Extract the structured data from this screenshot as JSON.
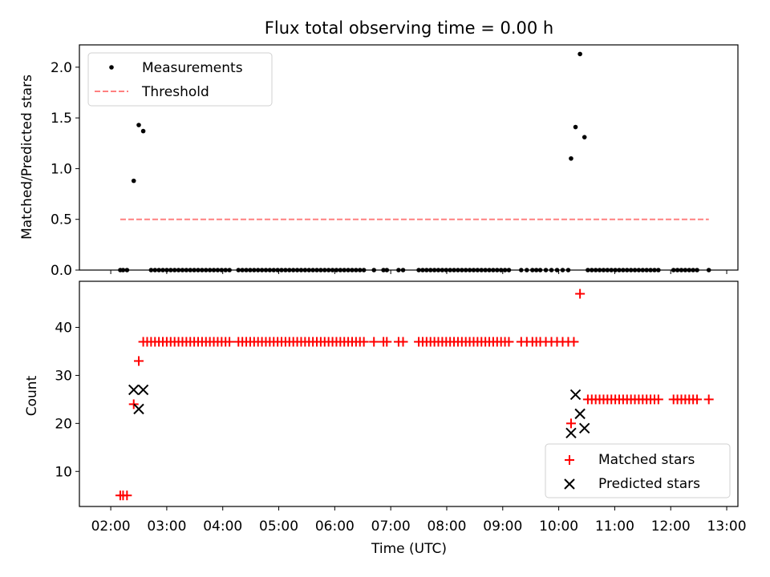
{
  "title": "Flux total observing time = 0.00 h",
  "xlabel": "Time (UTC)",
  "x_ticks": [
    "02:00",
    "03:00",
    "04:00",
    "05:00",
    "06:00",
    "07:00",
    "08:00",
    "09:00",
    "10:00",
    "11:00",
    "12:00",
    "13:00"
  ],
  "colors": {
    "measurement": "#000000",
    "threshold": "#ff8080",
    "matched": "#ff0000",
    "predicted": "#000000"
  },
  "chart_data": [
    {
      "type": "scatter",
      "ylabel": "Matched/Predicted stars",
      "ylim": [
        0,
        2.22
      ],
      "y_ticks": [
        "0.0",
        "0.5",
        "1.0",
        "1.5",
        "2.0"
      ],
      "x_unit": "hours UTC",
      "legend_position": "top-left",
      "series": [
        {
          "name": "Measurements",
          "marker": "dot",
          "points": [
            [
              2.17,
              0
            ],
            [
              2.22,
              0
            ],
            [
              2.29,
              0
            ],
            [
              2.41,
              0.88
            ],
            [
              2.5,
              1.43
            ],
            [
              2.58,
              1.37
            ],
            [
              2.72,
              0
            ],
            [
              2.79,
              0
            ],
            [
              2.86,
              0
            ],
            [
              2.93,
              0
            ],
            [
              3.0,
              0
            ],
            [
              3.07,
              0
            ],
            [
              3.14,
              0
            ],
            [
              3.21,
              0
            ],
            [
              3.28,
              0
            ],
            [
              3.35,
              0
            ],
            [
              3.42,
              0
            ],
            [
              3.49,
              0
            ],
            [
              3.56,
              0
            ],
            [
              3.63,
              0
            ],
            [
              3.7,
              0
            ],
            [
              3.77,
              0
            ],
            [
              3.84,
              0
            ],
            [
              3.91,
              0
            ],
            [
              3.98,
              0
            ],
            [
              4.05,
              0
            ],
            [
              4.12,
              0
            ],
            [
              4.28,
              0
            ],
            [
              4.35,
              0
            ],
            [
              4.42,
              0
            ],
            [
              4.49,
              0
            ],
            [
              4.56,
              0
            ],
            [
              4.63,
              0
            ],
            [
              4.7,
              0
            ],
            [
              4.77,
              0
            ],
            [
              4.84,
              0
            ],
            [
              4.91,
              0
            ],
            [
              4.98,
              0
            ],
            [
              5.05,
              0
            ],
            [
              5.12,
              0
            ],
            [
              5.19,
              0
            ],
            [
              5.26,
              0
            ],
            [
              5.33,
              0
            ],
            [
              5.4,
              0
            ],
            [
              5.47,
              0
            ],
            [
              5.54,
              0
            ],
            [
              5.61,
              0
            ],
            [
              5.68,
              0
            ],
            [
              5.75,
              0
            ],
            [
              5.82,
              0
            ],
            [
              5.89,
              0
            ],
            [
              5.96,
              0
            ],
            [
              6.03,
              0
            ],
            [
              6.1,
              0
            ],
            [
              6.17,
              0
            ],
            [
              6.24,
              0
            ],
            [
              6.31,
              0
            ],
            [
              6.38,
              0
            ],
            [
              6.45,
              0
            ],
            [
              6.52,
              0
            ],
            [
              6.7,
              0
            ],
            [
              6.87,
              0
            ],
            [
              6.93,
              0
            ],
            [
              7.14,
              0
            ],
            [
              7.22,
              0
            ],
            [
              7.5,
              0
            ],
            [
              7.57,
              0
            ],
            [
              7.64,
              0
            ],
            [
              7.71,
              0
            ],
            [
              7.78,
              0
            ],
            [
              7.85,
              0
            ],
            [
              7.92,
              0
            ],
            [
              7.99,
              0
            ],
            [
              8.06,
              0
            ],
            [
              8.13,
              0
            ],
            [
              8.2,
              0
            ],
            [
              8.27,
              0
            ],
            [
              8.34,
              0
            ],
            [
              8.41,
              0
            ],
            [
              8.48,
              0
            ],
            [
              8.55,
              0
            ],
            [
              8.62,
              0
            ],
            [
              8.69,
              0
            ],
            [
              8.76,
              0
            ],
            [
              8.83,
              0
            ],
            [
              8.9,
              0
            ],
            [
              8.97,
              0
            ],
            [
              9.04,
              0
            ],
            [
              9.11,
              0
            ],
            [
              9.33,
              0
            ],
            [
              9.43,
              0
            ],
            [
              9.53,
              0
            ],
            [
              9.6,
              0
            ],
            [
              9.67,
              0
            ],
            [
              9.77,
              0
            ],
            [
              9.87,
              0
            ],
            [
              9.97,
              0
            ],
            [
              10.07,
              0
            ],
            [
              10.17,
              0
            ],
            [
              10.22,
              1.1
            ],
            [
              10.3,
              1.41
            ],
            [
              10.38,
              2.13
            ],
            [
              10.46,
              1.31
            ],
            [
              10.52,
              0
            ],
            [
              10.59,
              0
            ],
            [
              10.66,
              0
            ],
            [
              10.73,
              0
            ],
            [
              10.8,
              0
            ],
            [
              10.87,
              0
            ],
            [
              10.94,
              0
            ],
            [
              11.01,
              0
            ],
            [
              11.08,
              0
            ],
            [
              11.15,
              0
            ],
            [
              11.22,
              0
            ],
            [
              11.29,
              0
            ],
            [
              11.36,
              0
            ],
            [
              11.43,
              0
            ],
            [
              11.5,
              0
            ],
            [
              11.57,
              0
            ],
            [
              11.64,
              0
            ],
            [
              11.71,
              0
            ],
            [
              11.78,
              0
            ],
            [
              12.05,
              0
            ],
            [
              12.12,
              0
            ],
            [
              12.19,
              0
            ],
            [
              12.26,
              0
            ],
            [
              12.33,
              0
            ],
            [
              12.4,
              0
            ],
            [
              12.47,
              0
            ],
            [
              12.68,
              0
            ]
          ]
        },
        {
          "name": "Threshold",
          "style": "dashed",
          "points": [
            [
              2.17,
              0.5
            ],
            [
              12.68,
              0.5
            ]
          ]
        }
      ]
    },
    {
      "type": "scatter",
      "ylabel": "Count",
      "ylim": [
        2.7,
        49.6
      ],
      "y_ticks": [
        "10",
        "20",
        "30",
        "40"
      ],
      "x_unit": "hours UTC",
      "legend_position": "bottom-right",
      "series": [
        {
          "name": "Matched stars",
          "marker": "plus",
          "points": [
            [
              2.17,
              5
            ],
            [
              2.22,
              5
            ],
            [
              2.29,
              5
            ],
            [
              2.41,
              24
            ],
            [
              2.5,
              33
            ],
            [
              2.58,
              37
            ],
            [
              2.65,
              37
            ],
            [
              2.72,
              37
            ],
            [
              2.79,
              37
            ],
            [
              2.86,
              37
            ],
            [
              2.93,
              37
            ],
            [
              3.0,
              37
            ],
            [
              3.07,
              37
            ],
            [
              3.14,
              37
            ],
            [
              3.21,
              37
            ],
            [
              3.28,
              37
            ],
            [
              3.35,
              37
            ],
            [
              3.42,
              37
            ],
            [
              3.49,
              37
            ],
            [
              3.56,
              37
            ],
            [
              3.63,
              37
            ],
            [
              3.7,
              37
            ],
            [
              3.77,
              37
            ],
            [
              3.84,
              37
            ],
            [
              3.91,
              37
            ],
            [
              3.98,
              37
            ],
            [
              4.05,
              37
            ],
            [
              4.12,
              37
            ],
            [
              4.28,
              37
            ],
            [
              4.35,
              37
            ],
            [
              4.42,
              37
            ],
            [
              4.49,
              37
            ],
            [
              4.56,
              37
            ],
            [
              4.63,
              37
            ],
            [
              4.7,
              37
            ],
            [
              4.77,
              37
            ],
            [
              4.84,
              37
            ],
            [
              4.91,
              37
            ],
            [
              4.98,
              37
            ],
            [
              5.05,
              37
            ],
            [
              5.12,
              37
            ],
            [
              5.19,
              37
            ],
            [
              5.26,
              37
            ],
            [
              5.33,
              37
            ],
            [
              5.4,
              37
            ],
            [
              5.47,
              37
            ],
            [
              5.54,
              37
            ],
            [
              5.61,
              37
            ],
            [
              5.68,
              37
            ],
            [
              5.75,
              37
            ],
            [
              5.82,
              37
            ],
            [
              5.89,
              37
            ],
            [
              5.96,
              37
            ],
            [
              6.03,
              37
            ],
            [
              6.1,
              37
            ],
            [
              6.17,
              37
            ],
            [
              6.24,
              37
            ],
            [
              6.31,
              37
            ],
            [
              6.38,
              37
            ],
            [
              6.45,
              37
            ],
            [
              6.52,
              37
            ],
            [
              6.7,
              37
            ],
            [
              6.87,
              37
            ],
            [
              6.93,
              37
            ],
            [
              7.14,
              37
            ],
            [
              7.22,
              37
            ],
            [
              7.5,
              37
            ],
            [
              7.57,
              37
            ],
            [
              7.64,
              37
            ],
            [
              7.71,
              37
            ],
            [
              7.78,
              37
            ],
            [
              7.85,
              37
            ],
            [
              7.92,
              37
            ],
            [
              7.99,
              37
            ],
            [
              8.06,
              37
            ],
            [
              8.13,
              37
            ],
            [
              8.2,
              37
            ],
            [
              8.27,
              37
            ],
            [
              8.34,
              37
            ],
            [
              8.41,
              37
            ],
            [
              8.48,
              37
            ],
            [
              8.55,
              37
            ],
            [
              8.62,
              37
            ],
            [
              8.69,
              37
            ],
            [
              8.76,
              37
            ],
            [
              8.83,
              37
            ],
            [
              8.9,
              37
            ],
            [
              8.97,
              37
            ],
            [
              9.04,
              37
            ],
            [
              9.11,
              37
            ],
            [
              9.33,
              37
            ],
            [
              9.43,
              37
            ],
            [
              9.53,
              37
            ],
            [
              9.6,
              37
            ],
            [
              9.67,
              37
            ],
            [
              9.77,
              37
            ],
            [
              9.87,
              37
            ],
            [
              9.97,
              37
            ],
            [
              10.07,
              37
            ],
            [
              10.17,
              37
            ],
            [
              10.27,
              37
            ],
            [
              10.22,
              20
            ],
            [
              10.38,
              47
            ],
            [
              10.52,
              25
            ],
            [
              10.59,
              25
            ],
            [
              10.66,
              25
            ],
            [
              10.73,
              25
            ],
            [
              10.8,
              25
            ],
            [
              10.87,
              25
            ],
            [
              10.94,
              25
            ],
            [
              11.01,
              25
            ],
            [
              11.08,
              25
            ],
            [
              11.15,
              25
            ],
            [
              11.22,
              25
            ],
            [
              11.29,
              25
            ],
            [
              11.36,
              25
            ],
            [
              11.43,
              25
            ],
            [
              11.5,
              25
            ],
            [
              11.57,
              25
            ],
            [
              11.64,
              25
            ],
            [
              11.71,
              25
            ],
            [
              11.78,
              25
            ],
            [
              12.05,
              25
            ],
            [
              12.12,
              25
            ],
            [
              12.19,
              25
            ],
            [
              12.26,
              25
            ],
            [
              12.33,
              25
            ],
            [
              12.4,
              25
            ],
            [
              12.47,
              25
            ],
            [
              12.68,
              25
            ]
          ]
        },
        {
          "name": "Predicted stars",
          "marker": "x",
          "points": [
            [
              2.41,
              27
            ],
            [
              2.5,
              23
            ],
            [
              2.58,
              27
            ],
            [
              10.22,
              18
            ],
            [
              10.3,
              26
            ],
            [
              10.38,
              22
            ],
            [
              10.46,
              19
            ]
          ]
        }
      ]
    }
  ]
}
